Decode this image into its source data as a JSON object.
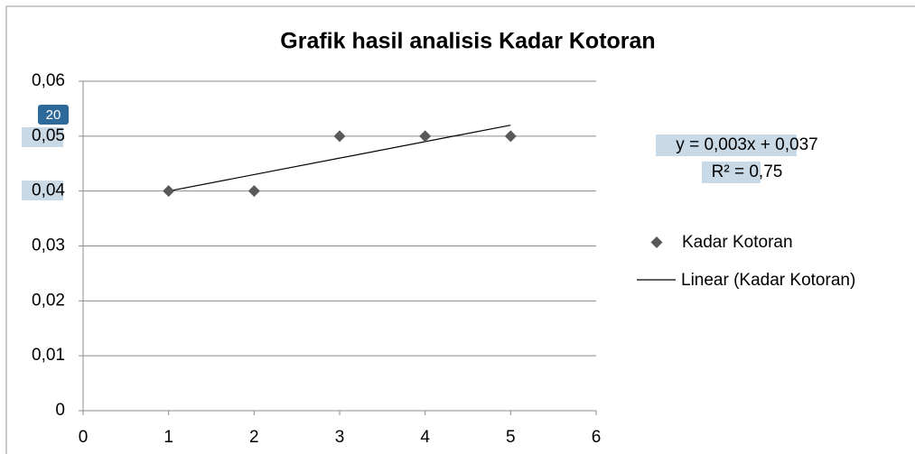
{
  "chart_data": {
    "type": "scatter",
    "title": "Grafik hasil analisis  Kadar Kotoran",
    "badge": "20",
    "trendline_equation": "y = 0,003x + 0,037",
    "trendline_r2": "R² = 0,75",
    "series": [
      {
        "name": "Kadar Kotoran",
        "color": "#595959",
        "x": [
          1,
          2,
          3,
          4,
          5
        ],
        "values": [
          0.04,
          0.04,
          0.05,
          0.05,
          0.05
        ]
      },
      {
        "name": "Linear (Kadar Kotoran)",
        "color": "#000000",
        "x": [
          1,
          5
        ],
        "values": [
          0.04,
          0.052
        ]
      }
    ],
    "xlim": [
      0,
      6
    ],
    "xticks": [
      0,
      1,
      2,
      3,
      4,
      5,
      6
    ],
    "ylim": [
      0,
      0.06
    ],
    "yticks": [
      0,
      {
        "value": 0.01,
        "label": "0,01"
      },
      {
        "value": 0.02,
        "label": "0,02"
      },
      {
        "value": 0.03,
        "label": "0,03"
      },
      {
        "value": 0.04,
        "label": "0,04"
      },
      {
        "value": 0.05,
        "label": "0,05"
      },
      {
        "value": 0.06,
        "label": "0,06"
      }
    ],
    "grid": true,
    "legend": "right"
  }
}
